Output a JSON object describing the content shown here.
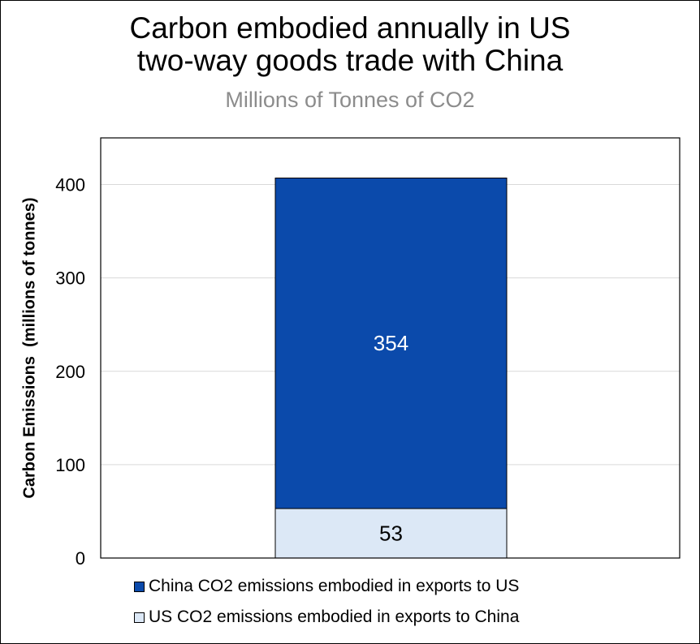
{
  "chart_data": {
    "type": "bar",
    "stacked": true,
    "title_lines": [
      "Carbon embodied annually in US",
      "two-way goods trade with China"
    ],
    "subtitle": "Millions of Tonnes of CO2",
    "xlabel": "",
    "ylabel": "Carbon Emissions  (millions of tonnes)",
    "ylim": [
      0,
      450
    ],
    "yticks": [
      0,
      100,
      200,
      300,
      400
    ],
    "grid": true,
    "legend_position": "bottom",
    "categories": [
      ""
    ],
    "series": [
      {
        "name": "US CO2 emissions embodied in exports to China",
        "values": [
          53
        ],
        "label": "53",
        "color": "#dce8f6",
        "label_color": "#000000"
      },
      {
        "name": "China CO2 emissions embodied in exports to US",
        "values": [
          354
        ],
        "label": "354",
        "color": "#0b4aab",
        "label_color": "#ffffff"
      }
    ],
    "legend_order": [
      1,
      0
    ]
  }
}
